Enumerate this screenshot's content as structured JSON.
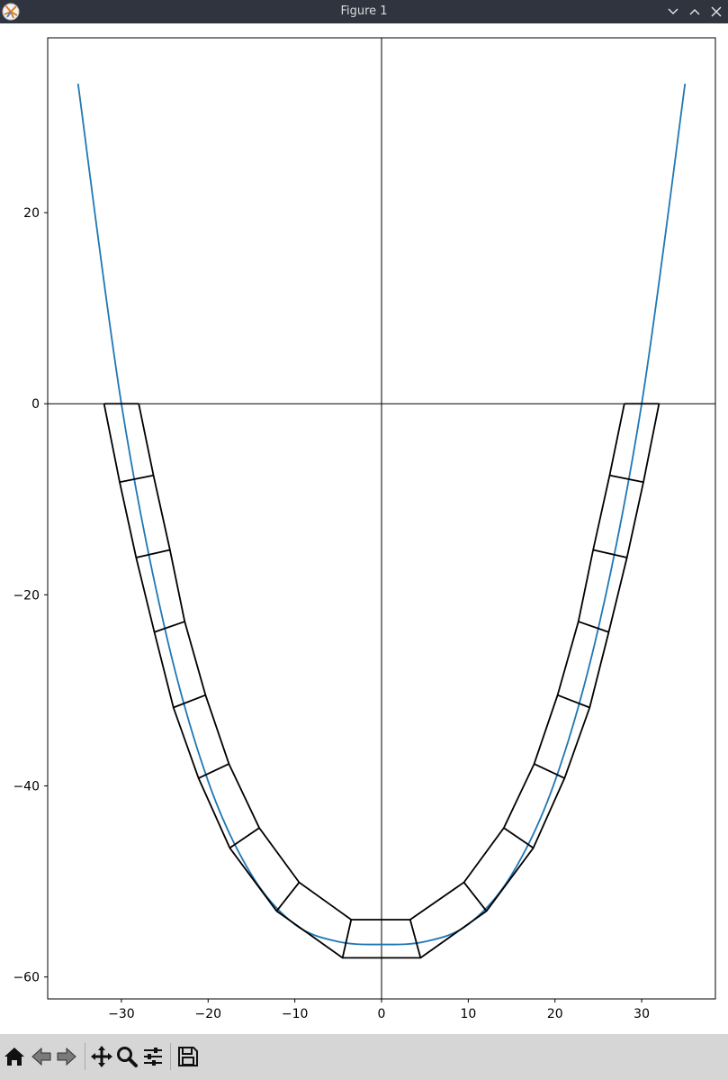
{
  "window": {
    "title": "Figure 1",
    "app_icon": "matplotlib-icon",
    "controls": [
      "chevron-down-icon",
      "chevron-up-icon",
      "close-icon"
    ]
  },
  "toolbar": {
    "buttons": [
      {
        "name": "home-button",
        "icon": "home-icon"
      },
      {
        "name": "back-button",
        "icon": "back-arrow-icon"
      },
      {
        "name": "forward-button",
        "icon": "forward-arrow-icon"
      },
      {
        "name": "pan-button",
        "icon": "move-icon"
      },
      {
        "name": "zoom-button",
        "icon": "magnifier-icon"
      },
      {
        "name": "configure-subplots-button",
        "icon": "sliders-icon"
      },
      {
        "name": "save-button",
        "icon": "floppy-disk-icon"
      }
    ]
  },
  "chart_data": {
    "type": "line",
    "title": "",
    "xlabel": "",
    "ylabel": "",
    "xlim": [
      -38.5,
      38.5
    ],
    "ylim": [
      -62.3,
      38.3
    ],
    "xticks": [
      -30,
      -20,
      -10,
      0,
      10,
      20,
      30
    ],
    "yticks": [
      -60,
      -40,
      -20,
      0,
      20
    ],
    "xtick_labels": [
      "−30",
      "−20",
      "−10",
      "0",
      "10",
      "20",
      "30"
    ],
    "ytick_labels": [
      "−60",
      "−40",
      "−20",
      "0",
      "20"
    ],
    "grid": false,
    "reference_lines": {
      "horizontal_y": 0,
      "vertical_x": 0
    },
    "series": [
      {
        "color": "#1f77b4",
        "x_range": [
          -35,
          35
        ],
        "points": [
          [
            -35,
            33.5
          ],
          [
            -30,
            0
          ],
          [
            -25,
            -23.5
          ],
          [
            -20,
            -39.5
          ],
          [
            -15,
            -49.3
          ],
          [
            -10,
            -54.5
          ],
          [
            -5,
            -56.3
          ],
          [
            0,
            -56.6
          ],
          [
            5,
            -56.3
          ],
          [
            10,
            -54.5
          ],
          [
            15,
            -49.3
          ],
          [
            20,
            -39.5
          ],
          [
            25,
            -23.5
          ],
          [
            30,
            0
          ],
          [
            35,
            33.5
          ]
        ]
      }
    ],
    "segments_outline": {
      "color": "#000000",
      "inner_edge": [
        [
          -28,
          0
        ],
        [
          -26.3,
          -7.5
        ],
        [
          -24.4,
          -15.3
        ],
        [
          -22.7,
          -22.8
        ],
        [
          -20.3,
          -30.5
        ],
        [
          -17.6,
          -37.7
        ],
        [
          -14.1,
          -44.4
        ],
        [
          -9.5,
          -50.1
        ],
        [
          -3.5,
          -54
        ],
        [
          3.3,
          -54
        ],
        [
          9.5,
          -50.1
        ],
        [
          14.1,
          -44.4
        ],
        [
          17.6,
          -37.7
        ],
        [
          20.3,
          -30.5
        ],
        [
          22.7,
          -22.8
        ],
        [
          24.4,
          -15.3
        ],
        [
          26.3,
          -7.5
        ],
        [
          28,
          0
        ]
      ],
      "outer_edge": [
        [
          -32,
          0
        ],
        [
          -30.2,
          -8.2
        ],
        [
          -28.3,
          -16.1
        ],
        [
          -26.2,
          -23.9
        ],
        [
          -24,
          -31.8
        ],
        [
          -21.1,
          -39.2
        ],
        [
          -17.5,
          -46.5
        ],
        [
          -12.1,
          -53.1
        ],
        [
          -4.5,
          -58
        ],
        [
          4.5,
          -58
        ],
        [
          12.1,
          -53.1
        ],
        [
          17.5,
          -46.5
        ],
        [
          21.1,
          -39.2
        ],
        [
          24,
          -31.8
        ],
        [
          26.2,
          -23.9
        ],
        [
          28.3,
          -16.1
        ],
        [
          30.2,
          -8.2
        ],
        [
          32,
          0
        ]
      ]
    }
  }
}
